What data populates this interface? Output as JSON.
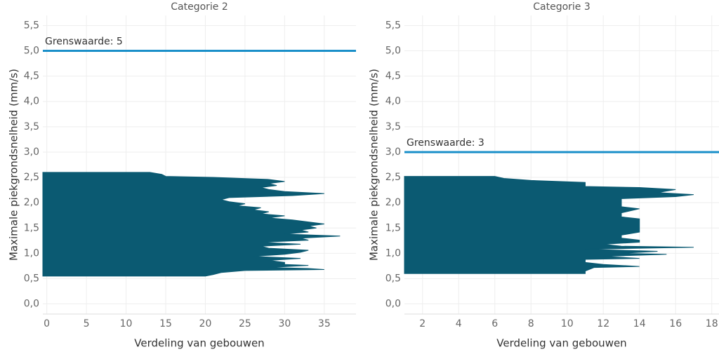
{
  "chart_data": [
    {
      "type": "area",
      "title": "Categorie 2",
      "xlabel": "Verdeling van gebouwen",
      "ylabel": "Maximale piekgrondsnelheid (mm/s)",
      "color": "#0b5a72",
      "grid": true,
      "y": [
        0.55,
        0.58,
        0.62,
        0.66,
        0.68,
        0.7,
        0.72,
        0.76,
        0.78,
        0.82,
        0.86,
        0.9,
        0.94,
        0.98,
        1.02,
        1.06,
        1.1,
        1.14,
        1.18,
        1.22,
        1.26,
        1.3,
        1.34,
        1.38,
        1.42,
        1.46,
        1.5,
        1.54,
        1.58,
        1.62,
        1.66,
        1.7,
        1.74,
        1.78,
        1.82,
        1.86,
        1.9,
        1.94,
        1.98,
        2.02,
        2.06,
        2.1,
        2.14,
        2.18,
        2.22,
        2.26,
        2.3,
        2.34,
        2.38,
        2.42,
        2.46,
        2.5,
        2.52,
        2.56,
        2.6
      ],
      "values": [
        20,
        21,
        22,
        25,
        35,
        33,
        28,
        33,
        30,
        30,
        28,
        32,
        26,
        30,
        32,
        33,
        28,
        27,
        32,
        27,
        33,
        32,
        37,
        30,
        33,
        32,
        34,
        33,
        35,
        33,
        31,
        28,
        30,
        27,
        28,
        26,
        27,
        24,
        25,
        23,
        22,
        23,
        31,
        35,
        30,
        28,
        27,
        29,
        28,
        30,
        28,
        21,
        15,
        14.5,
        13
      ],
      "xlim": [
        -0.5,
        39
      ],
      "xticks": [
        0,
        5,
        10,
        15,
        20,
        25,
        30,
        35
      ],
      "ylim": [
        -0.2,
        5.7
      ],
      "yticks": [
        {
          "value": 0,
          "label": "0,0"
        },
        {
          "value": 0.5,
          "label": "0,5"
        },
        {
          "value": 1,
          "label": "1,0"
        },
        {
          "value": 1.5,
          "label": "1,5"
        },
        {
          "value": 2,
          "label": "2,0"
        },
        {
          "value": 2.5,
          "label": "2,5"
        },
        {
          "value": 3,
          "label": "3,0"
        },
        {
          "value": 3.5,
          "label": "3,5"
        },
        {
          "value": 4,
          "label": "4,0"
        },
        {
          "value": 4.5,
          "label": "4,5"
        },
        {
          "value": 5,
          "label": "5,0"
        },
        {
          "value": 5.5,
          "label": "5,5"
        }
      ],
      "threshold": {
        "value": 5,
        "label": "Grenswaarde: 5",
        "color": "#1a8fc9"
      }
    },
    {
      "type": "area",
      "title": "Categorie 3",
      "xlabel": "Verdeling van gebouwen",
      "ylabel": "Maximale piekgrondsnelheid (mm/s)",
      "color": "#0b5a72",
      "grid": true,
      "y": [
        0.6,
        0.65,
        0.72,
        0.74,
        0.78,
        0.82,
        0.88,
        0.9,
        0.94,
        0.98,
        1.0,
        1.04,
        1.08,
        1.12,
        1.14,
        1.18,
        1.22,
        1.26,
        1.3,
        1.36,
        1.42,
        1.5,
        1.6,
        1.68,
        1.72,
        1.8,
        1.88,
        1.92,
        2.0,
        2.08,
        2.12,
        2.16,
        2.2,
        2.26,
        2.3,
        2.32,
        2.4,
        2.44,
        2.48,
        2.52
      ],
      "values": [
        11,
        11,
        11.5,
        14,
        12,
        11,
        11,
        14,
        12,
        15.5,
        13,
        15,
        11,
        17,
        13,
        12,
        14,
        14,
        13,
        13,
        14,
        14,
        14,
        14,
        13,
        13,
        14,
        13,
        13,
        13,
        16,
        17,
        15,
        16,
        14,
        11,
        11,
        8,
        6.5,
        6
      ],
      "xlim": [
        1,
        18.4
      ],
      "xticks": [
        2,
        4,
        6,
        8,
        10,
        12,
        14,
        16,
        18
      ],
      "ylim": [
        -0.2,
        5.7
      ],
      "yticks": [
        {
          "value": 0,
          "label": "0,0"
        },
        {
          "value": 0.5,
          "label": "0,5"
        },
        {
          "value": 1,
          "label": "1,0"
        },
        {
          "value": 1.5,
          "label": "1,5"
        },
        {
          "value": 2,
          "label": "2,0"
        },
        {
          "value": 2.5,
          "label": "2,5"
        },
        {
          "value": 3,
          "label": "3,0"
        },
        {
          "value": 3.5,
          "label": "3,5"
        },
        {
          "value": 4,
          "label": "4,0"
        },
        {
          "value": 4.5,
          "label": "4,5"
        },
        {
          "value": 5,
          "label": "5,0"
        },
        {
          "value": 5.5,
          "label": "5,5"
        }
      ],
      "threshold": {
        "value": 3,
        "label": "Grenswaarde: 3",
        "color": "#1a8fc9"
      }
    }
  ]
}
